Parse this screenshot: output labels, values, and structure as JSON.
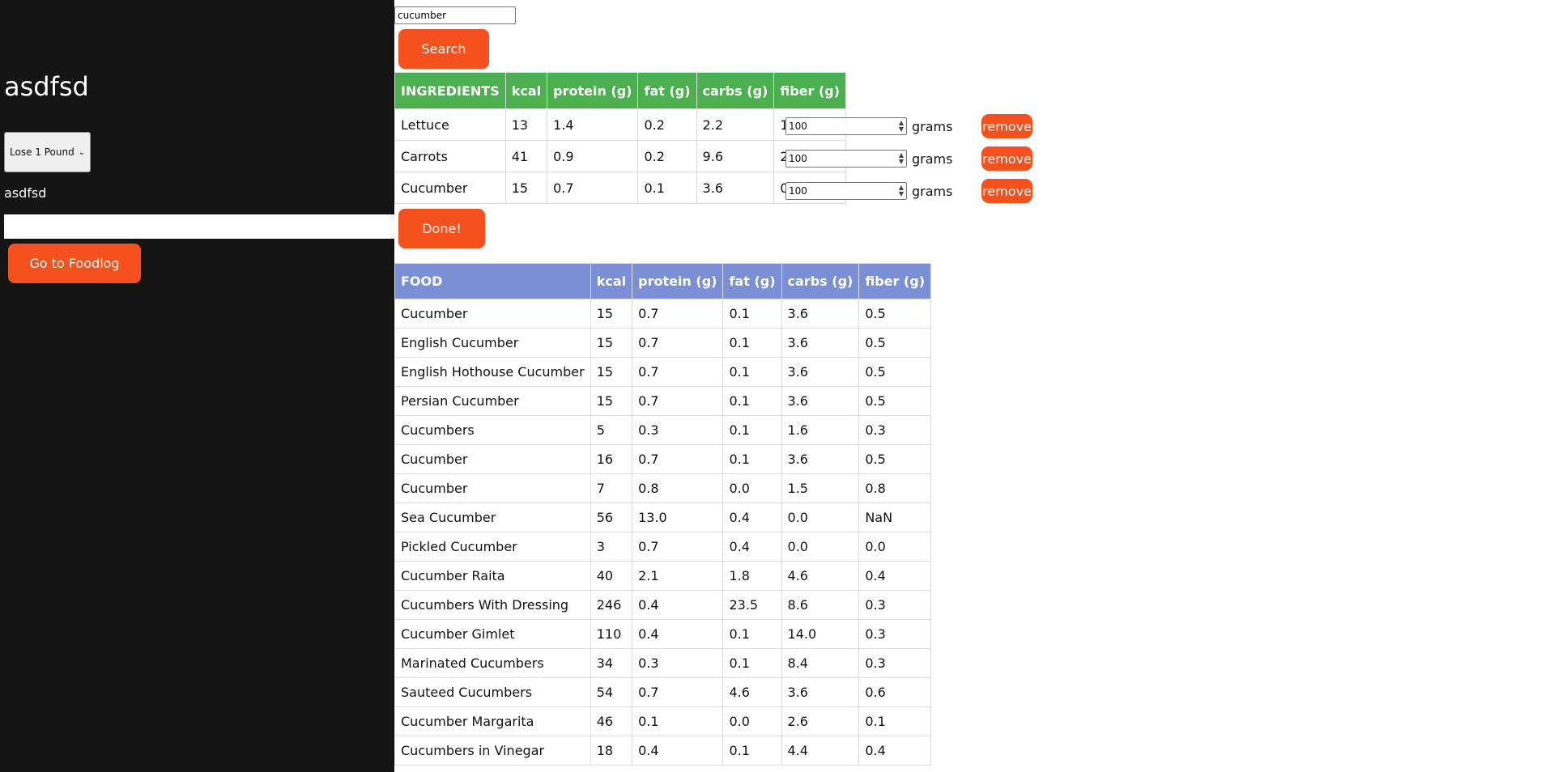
{
  "sidebar": {
    "title": "asdfsd",
    "goal_select": {
      "selected": "Lose 1 Pound"
    },
    "label": "asdfsd",
    "input_value": "",
    "foodlog_button": "Go to Foodlog"
  },
  "search": {
    "value": "cucumber",
    "button": "Search"
  },
  "ingredients": {
    "headers": [
      "INGREDIENTS",
      "kcal",
      "protein (g)",
      "fat (g)",
      "carbs (g)",
      "fiber (g)"
    ],
    "rows": [
      {
        "name": "Lettuce",
        "kcal": "13",
        "protein": "1.4",
        "fat": "0.2",
        "carbs": "2.2",
        "fiber": "1.1",
        "grams": "100"
      },
      {
        "name": "Carrots",
        "kcal": "41",
        "protein": "0.9",
        "fat": "0.2",
        "carbs": "9.6",
        "fiber": "2.8",
        "grams": "100"
      },
      {
        "name": "Cucumber",
        "kcal": "15",
        "protein": "0.7",
        "fat": "0.1",
        "carbs": "3.6",
        "fiber": "0.5",
        "grams": "100"
      }
    ],
    "grams_label": "grams",
    "remove_label": "remove",
    "done_button": "Done!"
  },
  "foods": {
    "headers": [
      "FOOD",
      "kcal",
      "protein (g)",
      "fat (g)",
      "carbs (g)",
      "fiber (g)"
    ],
    "rows": [
      {
        "name": "Cucumber",
        "kcal": "15",
        "protein": "0.7",
        "fat": "0.1",
        "carbs": "3.6",
        "fiber": "0.5"
      },
      {
        "name": "English Cucumber",
        "kcal": "15",
        "protein": "0.7",
        "fat": "0.1",
        "carbs": "3.6",
        "fiber": "0.5"
      },
      {
        "name": "English Hothouse Cucumber",
        "kcal": "15",
        "protein": "0.7",
        "fat": "0.1",
        "carbs": "3.6",
        "fiber": "0.5"
      },
      {
        "name": "Persian Cucumber",
        "kcal": "15",
        "protein": "0.7",
        "fat": "0.1",
        "carbs": "3.6",
        "fiber": "0.5"
      },
      {
        "name": "Cucumbers",
        "kcal": "5",
        "protein": "0.3",
        "fat": "0.1",
        "carbs": "1.6",
        "fiber": "0.3"
      },
      {
        "name": "Cucumber",
        "kcal": "16",
        "protein": "0.7",
        "fat": "0.1",
        "carbs": "3.6",
        "fiber": "0.5"
      },
      {
        "name": "Cucumber",
        "kcal": "7",
        "protein": "0.8",
        "fat": "0.0",
        "carbs": "1.5",
        "fiber": "0.8"
      },
      {
        "name": "Sea Cucumber",
        "kcal": "56",
        "protein": "13.0",
        "fat": "0.4",
        "carbs": "0.0",
        "fiber": "NaN"
      },
      {
        "name": "Pickled Cucumber",
        "kcal": "3",
        "protein": "0.7",
        "fat": "0.4",
        "carbs": "0.0",
        "fiber": "0.0"
      },
      {
        "name": "Cucumber Raita",
        "kcal": "40",
        "protein": "2.1",
        "fat": "1.8",
        "carbs": "4.6",
        "fiber": "0.4"
      },
      {
        "name": "Cucumbers With Dressing",
        "kcal": "246",
        "protein": "0.4",
        "fat": "23.5",
        "carbs": "8.6",
        "fiber": "0.3"
      },
      {
        "name": "Cucumber Gimlet",
        "kcal": "110",
        "protein": "0.4",
        "fat": "0.1",
        "carbs": "14.0",
        "fiber": "0.3"
      },
      {
        "name": "Marinated Cucumbers",
        "kcal": "34",
        "protein": "0.3",
        "fat": "0.1",
        "carbs": "8.4",
        "fiber": "0.3"
      },
      {
        "name": "Sauteed Cucumbers",
        "kcal": "54",
        "protein": "0.7",
        "fat": "4.6",
        "carbs": "3.6",
        "fiber": "0.6"
      },
      {
        "name": "Cucumber Margarita",
        "kcal": "46",
        "protein": "0.1",
        "fat": "0.0",
        "carbs": "2.6",
        "fiber": "0.1"
      },
      {
        "name": "Cucumbers in Vinegar",
        "kcal": "18",
        "protein": "0.4",
        "fat": "0.1",
        "carbs": "4.4",
        "fiber": "0.4"
      }
    ]
  },
  "colors": {
    "sidebar_bg": "#141414",
    "accent_orange": "#f4511e",
    "ingredients_header": "#4caf50",
    "food_header": "#7b8fd6"
  }
}
